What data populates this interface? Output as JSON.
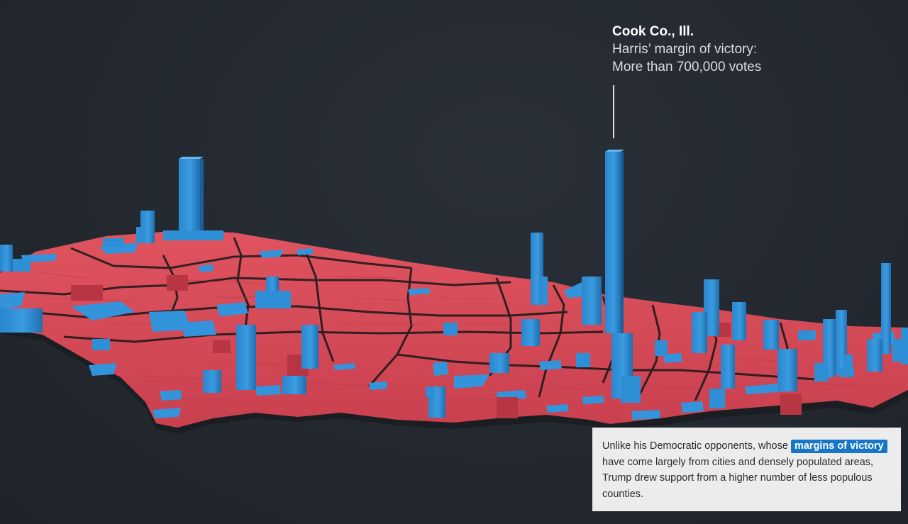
{
  "callout": {
    "county": "Cook Co., Ill.",
    "line1": "Harris’ margin of victory:",
    "line2": "More than 700,000 votes"
  },
  "caption": {
    "before": "Unlike his Democratic opponents, whose ",
    "highlight": "margins of victory",
    "after": " have come largely from cities and densely populated areas, Trump drew support from a higher number of less populous counties."
  },
  "legend_colors": {
    "harris": "#2f8fd6",
    "trump": "#d7485a",
    "background": "#23282f"
  }
}
